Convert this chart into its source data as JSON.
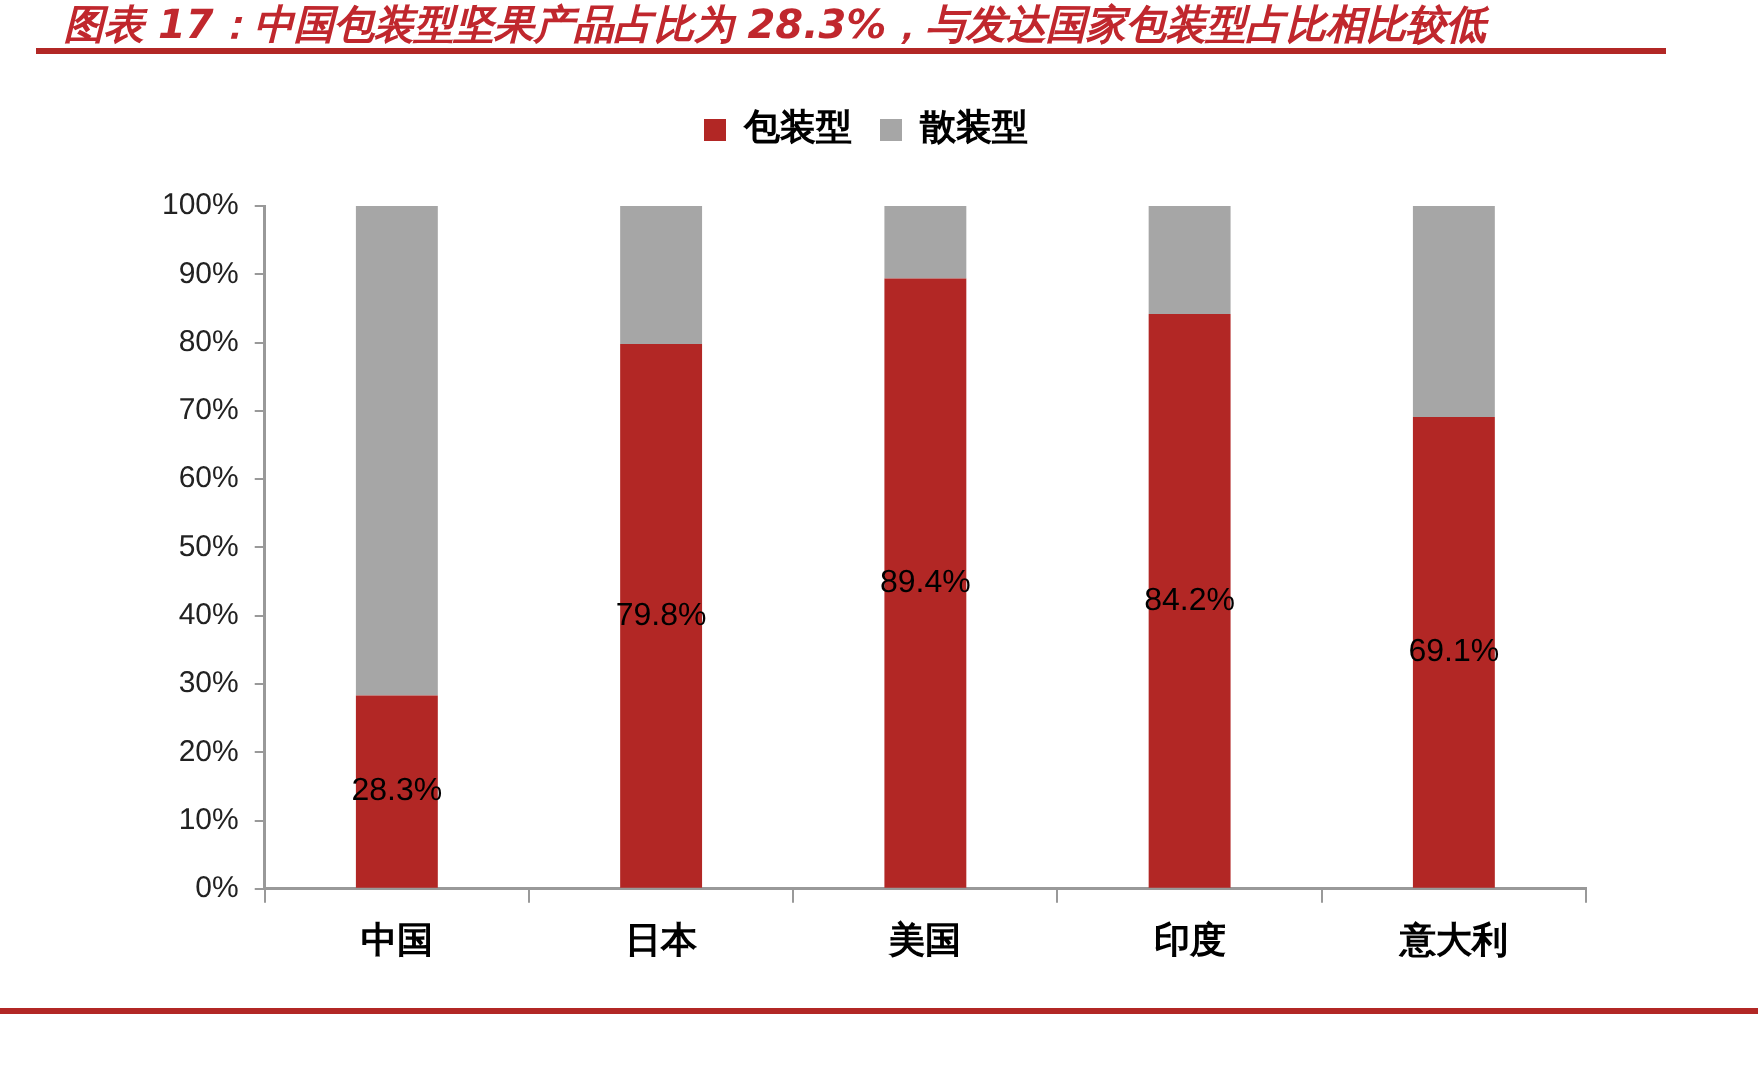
{
  "chart_data": {
    "type": "bar",
    "title": "图表 17：中国包装型坚果产品占比为 28.3%，与发达国家包装型占比相比较低",
    "categories": [
      "中国",
      "日本",
      "美国",
      "印度",
      "意大利"
    ],
    "series": [
      {
        "name": "包装型",
        "color": "#b22725",
        "values": [
          28.3,
          79.8,
          89.4,
          84.2,
          69.1
        ],
        "value_labels": [
          "28.3%",
          "79.8%",
          "89.4%",
          "84.2%",
          "69.1%"
        ]
      },
      {
        "name": "散装型",
        "color": "#a6a6a6",
        "values": [
          71.7,
          20.2,
          10.6,
          15.8,
          30.9
        ]
      }
    ],
    "stacked": true,
    "ylim": [
      0,
      100
    ],
    "yticks": [
      {
        "value": 0,
        "label": "0%"
      },
      {
        "value": 10,
        "label": "10%"
      },
      {
        "value": 20,
        "label": "20%"
      },
      {
        "value": 30,
        "label": "30%"
      },
      {
        "value": 40,
        "label": "40%"
      },
      {
        "value": 50,
        "label": "50%"
      },
      {
        "value": 60,
        "label": "60%"
      },
      {
        "value": 70,
        "label": "70%"
      },
      {
        "value": 80,
        "label": "80%"
      },
      {
        "value": 90,
        "label": "90%"
      },
      {
        "value": 100,
        "label": "100%"
      }
    ],
    "legend": "top"
  }
}
